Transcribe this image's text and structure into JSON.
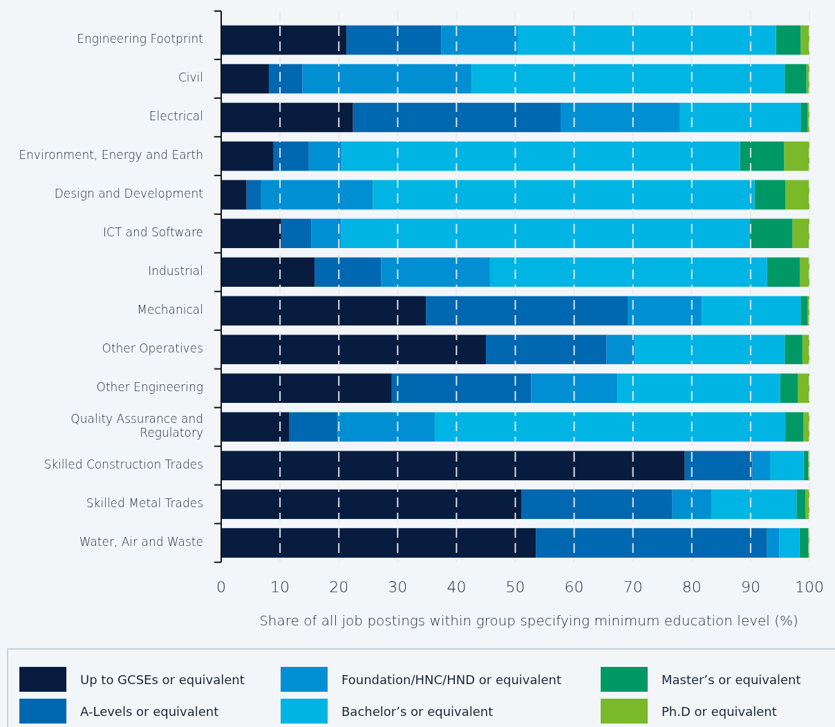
{
  "chart_data": {
    "type": "bar",
    "orientation": "horizontal",
    "stacked": true,
    "xlabel": "Share of all job postings within group specifying minimum education level (%)",
    "categories": [
      "Engineering Footprint",
      "Civil",
      "Electrical",
      "Environment, Energy and Earth",
      "Design and Development",
      "ICT and Software",
      "Industrial",
      "Mechanical",
      "Other Operatives",
      "Other Engineering",
      "Quality Assurance and Regulatory",
      "Skilled Construction Trades",
      "Skilled Metal Trades",
      "Water, Air and Waste"
    ],
    "series": [
      {
        "name": "Up to GCSEs or equivalent",
        "color": "#081c40",
        "values": [
          21.3,
          8.1,
          22.4,
          8.9,
          4.3,
          10.2,
          15.9,
          34.8,
          45.0,
          29.0,
          11.6,
          78.8,
          51.0,
          53.5
        ]
      },
      {
        "name": "A-Levels or equivalent",
        "color": "#0068b0",
        "values": [
          16.1,
          5.7,
          35.3,
          6.0,
          2.5,
          5.1,
          11.3,
          34.3,
          20.5,
          23.7,
          8.2,
          11.5,
          25.7,
          39.3
        ]
      },
      {
        "name": "Foundation/HNC/HND or equivalent",
        "color": "#008fd3",
        "values": [
          13.0,
          28.8,
          20.3,
          5.6,
          19.0,
          5.1,
          18.5,
          12.6,
          4.8,
          14.7,
          16.5,
          3.0,
          6.7,
          2.1
        ]
      },
      {
        "name": "Bachelor’s or equivalent",
        "color": "#00b4e4",
        "values": [
          43.9,
          53.2,
          20.5,
          67.7,
          64.9,
          69.5,
          47.1,
          16.8,
          25.5,
          27.6,
          59.6,
          5.7,
          14.4,
          3.4
        ]
      },
      {
        "name": "Master’s or equivalent",
        "color": "#009865",
        "values": [
          4.2,
          3.7,
          1.2,
          7.5,
          5.2,
          7.2,
          5.6,
          1.2,
          3.0,
          3.0,
          3.1,
          0.8,
          1.5,
          1.5
        ]
      },
      {
        "name": "Ph.D or equivalent",
        "color": "#7ab929",
        "values": [
          1.5,
          0.5,
          0.3,
          4.3,
          4.1,
          2.9,
          1.6,
          0.3,
          1.2,
          2.0,
          1.0,
          0.2,
          0.7,
          0.2
        ]
      }
    ],
    "xlim": [
      0,
      100
    ],
    "xticks": [
      0,
      10,
      20,
      30,
      40,
      50,
      60,
      70,
      80,
      90,
      100
    ],
    "grid": "x",
    "legend": "bottom"
  }
}
